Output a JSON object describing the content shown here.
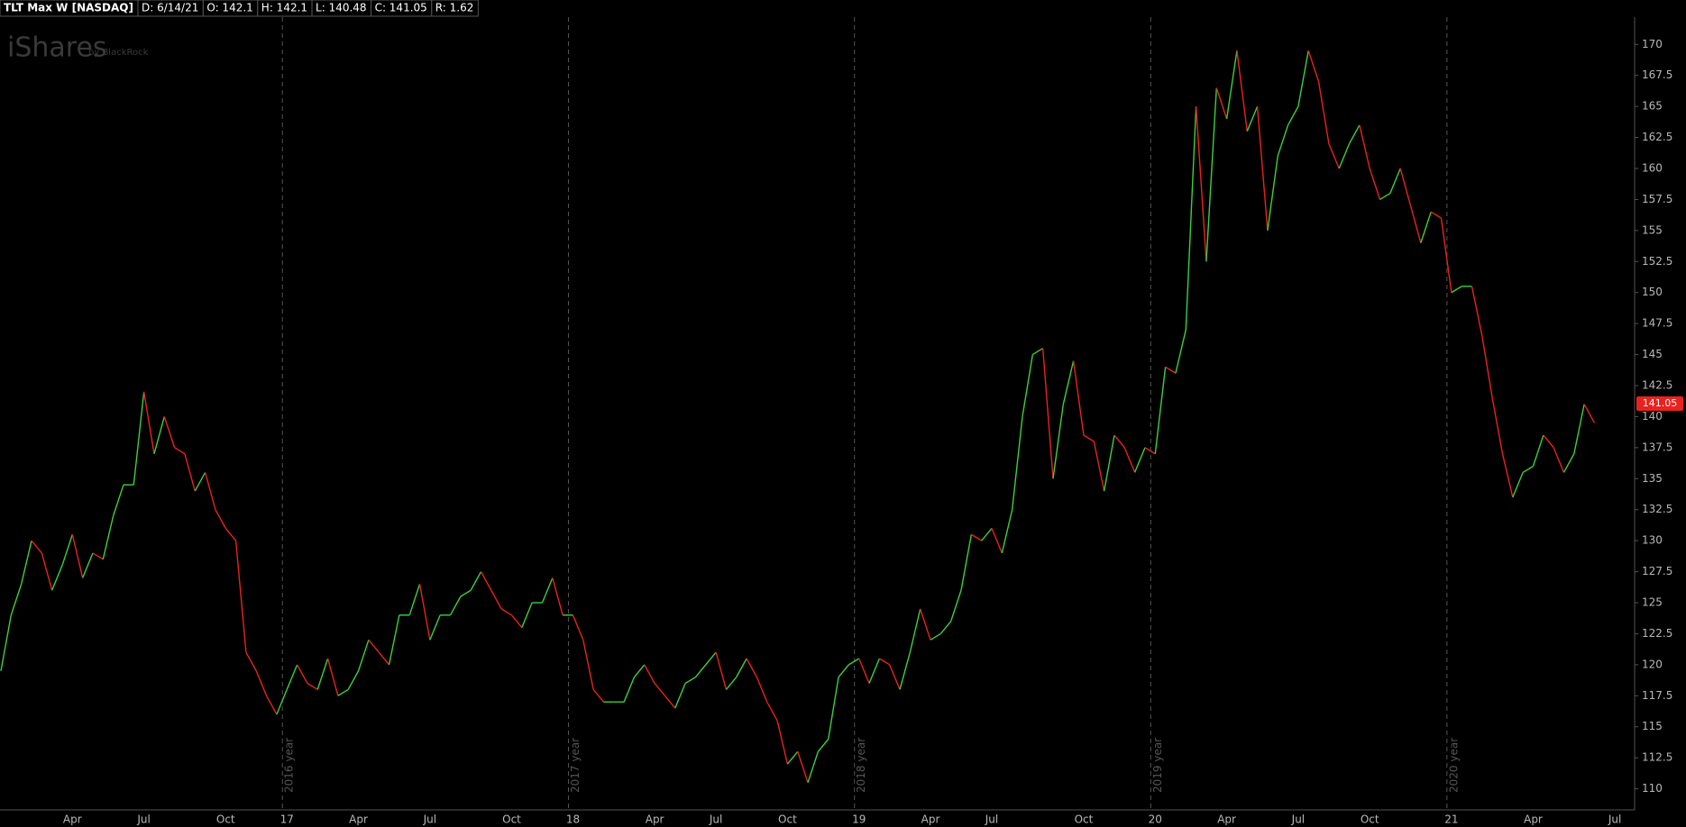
{
  "header": {
    "items": [
      "TLT Max W [NASDAQ]",
      "D: 6/14/21",
      "O: 142.1",
      "H: 142.1",
      "L: 140.48",
      "C: 141.05",
      "R: 1.62"
    ]
  },
  "logo": "iShares",
  "logo_sub": "by BlackRock",
  "chart_data": {
    "type": "line",
    "categories": [
      null,
      null,
      null,
      null,
      null,
      null,
      null,
      "Apr",
      null,
      null,
      null,
      null,
      null,
      null,
      "Jul",
      null,
      null,
      null,
      null,
      null,
      null,
      null,
      "Oct",
      null,
      null,
      null,
      null,
      null,
      "17",
      null,
      null,
      null,
      null,
      null,
      null,
      "Apr",
      null,
      null,
      null,
      null,
      null,
      null,
      "Jul",
      null,
      null,
      null,
      null,
      null,
      null,
      null,
      "Oct",
      null,
      null,
      null,
      null,
      null,
      "18",
      null,
      null,
      null,
      null,
      null,
      null,
      null,
      "Apr",
      null,
      null,
      null,
      null,
      null,
      "Jul",
      null,
      null,
      null,
      null,
      null,
      null,
      "Oct",
      null,
      null,
      null,
      null,
      null,
      null,
      "19",
      null,
      null,
      null,
      null,
      null,
      null,
      "Apr",
      null,
      null,
      null,
      null,
      null,
      "Jul",
      null,
      null,
      null,
      null,
      null,
      null,
      null,
      null,
      "Oct",
      null,
      null,
      null,
      null,
      null,
      null,
      "20",
      null,
      null,
      null,
      null,
      null,
      null,
      "Apr",
      null,
      null,
      null,
      null,
      null,
      null,
      "Jul",
      null,
      null,
      null,
      null,
      null,
      null,
      "Oct",
      null,
      null,
      null,
      null,
      null,
      null,
      null,
      "21",
      null,
      null,
      null,
      null,
      null,
      null,
      null,
      "Apr",
      null,
      null,
      null,
      null,
      null,
      null,
      null,
      "Jul"
    ],
    "series": [
      {
        "name": "TLT",
        "up_color": "#3ecf3e",
        "down_color": "#e8231f",
        "values": [
          119.5,
          124,
          126.5,
          130,
          129,
          126,
          128,
          130.5,
          127,
          129,
          128.5,
          132,
          134.5,
          134.5,
          142,
          137,
          140,
          137.5,
          137,
          134,
          135.5,
          132.5,
          131,
          130,
          121,
          119.5,
          117.5,
          116,
          118,
          120,
          118.5,
          118,
          120.5,
          117.5,
          118,
          119.5,
          122,
          121,
          120,
          124,
          124,
          126.5,
          122,
          124,
          124,
          125.5,
          126,
          127.5,
          126,
          124.5,
          124,
          123,
          125,
          125,
          127,
          124,
          124,
          122,
          118,
          117,
          117,
          117,
          119,
          120,
          118.5,
          117.5,
          116.5,
          118.5,
          119,
          120,
          121,
          118,
          119,
          120.5,
          119,
          117,
          115.5,
          112,
          113,
          110.5,
          113,
          114,
          119,
          120,
          120.5,
          118.5,
          120.5,
          120,
          118,
          121,
          124.5,
          122,
          122.5,
          123.5,
          126,
          130.5,
          130,
          131,
          129,
          132.5,
          140,
          145,
          145.5,
          135,
          141,
          144.5,
          138.5,
          138,
          134,
          138.5,
          137.5,
          135.5,
          137.5,
          137,
          144,
          143.5,
          147,
          165,
          152.5,
          166.5,
          164,
          169.5,
          163,
          165,
          155,
          161,
          163.5,
          165,
          169.5,
          167,
          162,
          160,
          162,
          163.5,
          160,
          157.5,
          158,
          160,
          157,
          154,
          156.5,
          156,
          150,
          150.5,
          150.5,
          146.5,
          141.5,
          137,
          133.5,
          135.5,
          136,
          138.5,
          137.5,
          135.5,
          137,
          141,
          139.5,
          null,
          null
        ]
      }
    ],
    "year_markers": [
      "2016 year",
      "2017 year",
      "2018 year",
      "2019 year",
      "2020 year"
    ],
    "last_price": 141.05,
    "last_price_color": "#e8231f",
    "ylim": [
      108.3,
      172.2
    ],
    "yticks": [
      110,
      112.5,
      115,
      117.5,
      120,
      122.5,
      125,
      127.5,
      130,
      132.5,
      135,
      137.5,
      140,
      142.5,
      145,
      147.5,
      150,
      152.5,
      155,
      157.5,
      160,
      162.5,
      165,
      167.5,
      170
    ]
  }
}
